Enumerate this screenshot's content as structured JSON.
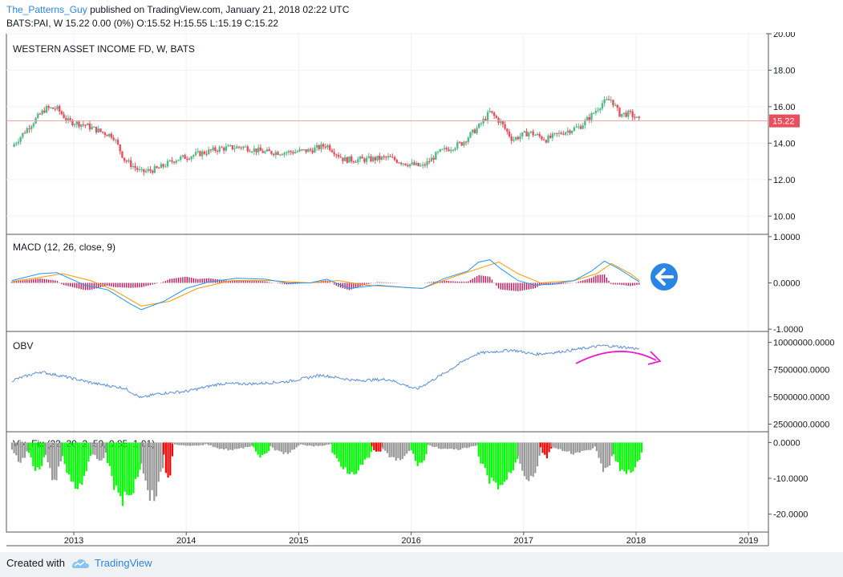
{
  "header": {
    "author": "The_Patterns_Guy",
    "published_text": "published on TradingView.com, January 21, 2018 02:22 UTC",
    "symbol_line": "BATS:PAI, W  15.22 0.00 (0%) O:15.52 H:15.55 L:15.19 C:15.22"
  },
  "footer": {
    "created_with": "Created with",
    "brand": "TradingView"
  },
  "colors": {
    "up": "#53b987",
    "down": "#eb4d5c",
    "price_line": "#e8a0a0",
    "macd": "#2196f3",
    "signal": "#ff9800",
    "hist": "#c2185b",
    "obv": "#5b8fd6",
    "vix_gray": "#999999",
    "vix_green": "#00ff00",
    "vix_red": "#ff0000",
    "annotation_arrow": "#e91ecf",
    "left_arrow": "#2b85e4"
  },
  "chart_data": {
    "type": "multi-panel",
    "x_ticks": [
      "2013",
      "2014",
      "2015",
      "2016",
      "2017",
      "2018",
      "2019"
    ],
    "panels": [
      {
        "name": "price",
        "type": "candlestick",
        "title": "WESTERN ASSET INCOME FD, W, BATS",
        "ylim": [
          9,
          20
        ],
        "y_ticks": [
          "10.00",
          "12.00",
          "14.00",
          "16.00",
          "18.00",
          "20.00"
        ],
        "last_value_label": "15.22",
        "last_value": 15.22,
        "close_series_approx": [
          {
            "t": 2012.45,
            "v": 13.8
          },
          {
            "t": 2012.6,
            "v": 14.9
          },
          {
            "t": 2012.75,
            "v": 15.9
          },
          {
            "t": 2012.85,
            "v": 15.9
          },
          {
            "t": 2012.95,
            "v": 15.2
          },
          {
            "t": 2013.1,
            "v": 15.0
          },
          {
            "t": 2013.25,
            "v": 14.6
          },
          {
            "t": 2013.35,
            "v": 14.4
          },
          {
            "t": 2013.45,
            "v": 13.1
          },
          {
            "t": 2013.6,
            "v": 12.4
          },
          {
            "t": 2013.75,
            "v": 12.6
          },
          {
            "t": 2013.9,
            "v": 13.1
          },
          {
            "t": 2014.1,
            "v": 13.4
          },
          {
            "t": 2014.3,
            "v": 13.7
          },
          {
            "t": 2014.5,
            "v": 13.8
          },
          {
            "t": 2014.7,
            "v": 13.5
          },
          {
            "t": 2014.9,
            "v": 13.5
          },
          {
            "t": 2015.1,
            "v": 13.6
          },
          {
            "t": 2015.25,
            "v": 13.9
          },
          {
            "t": 2015.4,
            "v": 13.1
          },
          {
            "t": 2015.6,
            "v": 13.1
          },
          {
            "t": 2015.8,
            "v": 13.2
          },
          {
            "t": 2015.95,
            "v": 12.9
          },
          {
            "t": 2016.1,
            "v": 12.7
          },
          {
            "t": 2016.25,
            "v": 13.5
          },
          {
            "t": 2016.45,
            "v": 14.0
          },
          {
            "t": 2016.6,
            "v": 14.9
          },
          {
            "t": 2016.7,
            "v": 15.7
          },
          {
            "t": 2016.8,
            "v": 15.1
          },
          {
            "t": 2016.9,
            "v": 14.2
          },
          {
            "t": 2017.05,
            "v": 14.6
          },
          {
            "t": 2017.2,
            "v": 14.2
          },
          {
            "t": 2017.35,
            "v": 14.6
          },
          {
            "t": 2017.5,
            "v": 14.9
          },
          {
            "t": 2017.6,
            "v": 15.5
          },
          {
            "t": 2017.7,
            "v": 16.2
          },
          {
            "t": 2017.78,
            "v": 16.4
          },
          {
            "t": 2017.85,
            "v": 15.6
          },
          {
            "t": 2017.95,
            "v": 15.6
          },
          {
            "t": 2018.03,
            "v": 15.22
          }
        ]
      },
      {
        "name": "macd",
        "type": "line+histogram",
        "title": "MACD (12, 26, close, 9)",
        "ylim": [
          -1.05,
          1.05
        ],
        "y_ticks": [
          "1.0000",
          "0.0000",
          "-1.0000"
        ],
        "macd_series_approx": [
          {
            "t": 2012.45,
            "v": 0.05
          },
          {
            "t": 2012.7,
            "v": 0.2
          },
          {
            "t": 2012.85,
            "v": 0.22
          },
          {
            "t": 2013.1,
            "v": -0.05
          },
          {
            "t": 2013.3,
            "v": -0.15
          },
          {
            "t": 2013.5,
            "v": -0.45
          },
          {
            "t": 2013.6,
            "v": -0.58
          },
          {
            "t": 2013.8,
            "v": -0.4
          },
          {
            "t": 2014.0,
            "v": -0.12
          },
          {
            "t": 2014.2,
            "v": 0.02
          },
          {
            "t": 2014.45,
            "v": 0.1
          },
          {
            "t": 2014.7,
            "v": 0.08
          },
          {
            "t": 2014.9,
            "v": 0.0
          },
          {
            "t": 2015.1,
            "v": 0.0
          },
          {
            "t": 2015.25,
            "v": 0.08
          },
          {
            "t": 2015.45,
            "v": -0.12
          },
          {
            "t": 2015.7,
            "v": -0.05
          },
          {
            "t": 2015.95,
            "v": -0.1
          },
          {
            "t": 2016.1,
            "v": -0.12
          },
          {
            "t": 2016.3,
            "v": 0.1
          },
          {
            "t": 2016.5,
            "v": 0.25
          },
          {
            "t": 2016.6,
            "v": 0.45
          },
          {
            "t": 2016.7,
            "v": 0.5
          },
          {
            "t": 2016.8,
            "v": 0.3
          },
          {
            "t": 2016.95,
            "v": 0.05
          },
          {
            "t": 2017.1,
            "v": -0.05
          },
          {
            "t": 2017.25,
            "v": -0.02
          },
          {
            "t": 2017.45,
            "v": 0.05
          },
          {
            "t": 2017.6,
            "v": 0.25
          },
          {
            "t": 2017.72,
            "v": 0.47
          },
          {
            "t": 2017.85,
            "v": 0.3
          },
          {
            "t": 2018.03,
            "v": 0.02
          }
        ],
        "signal_series_approx": [
          {
            "t": 2012.45,
            "v": 0.03
          },
          {
            "t": 2012.7,
            "v": 0.12
          },
          {
            "t": 2012.9,
            "v": 0.2
          },
          {
            "t": 2013.15,
            "v": 0.05
          },
          {
            "t": 2013.35,
            "v": -0.15
          },
          {
            "t": 2013.6,
            "v": -0.5
          },
          {
            "t": 2013.85,
            "v": -0.4
          },
          {
            "t": 2014.1,
            "v": -0.12
          },
          {
            "t": 2014.4,
            "v": 0.05
          },
          {
            "t": 2014.75,
            "v": 0.05
          },
          {
            "t": 2015.1,
            "v": 0.0
          },
          {
            "t": 2015.35,
            "v": 0.05
          },
          {
            "t": 2015.6,
            "v": -0.05
          },
          {
            "t": 2016.1,
            "v": -0.12
          },
          {
            "t": 2016.4,
            "v": 0.15
          },
          {
            "t": 2016.65,
            "v": 0.35
          },
          {
            "t": 2016.78,
            "v": 0.45
          },
          {
            "t": 2016.95,
            "v": 0.2
          },
          {
            "t": 2017.15,
            "v": 0.0
          },
          {
            "t": 2017.45,
            "v": 0.05
          },
          {
            "t": 2017.65,
            "v": 0.2
          },
          {
            "t": 2017.78,
            "v": 0.42
          },
          {
            "t": 2017.95,
            "v": 0.2
          },
          {
            "t": 2018.03,
            "v": 0.05
          }
        ],
        "annotation": "left-pointing arrow at right of panel"
      },
      {
        "name": "obv",
        "type": "line",
        "title": "OBV",
        "ylim": [
          1800000,
          11000000
        ],
        "y_ticks": [
          "10000000.0000",
          "7500000.0000",
          "5000000.0000",
          "2500000.0000"
        ],
        "obv_series_approx": [
          {
            "t": 2012.45,
            "v": 6500000
          },
          {
            "t": 2012.7,
            "v": 7300000
          },
          {
            "t": 2012.9,
            "v": 6900000
          },
          {
            "t": 2013.2,
            "v": 6200000
          },
          {
            "t": 2013.45,
            "v": 5800000
          },
          {
            "t": 2013.6,
            "v": 4900000
          },
          {
            "t": 2013.75,
            "v": 5300000
          },
          {
            "t": 2014.0,
            "v": 5500000
          },
          {
            "t": 2014.3,
            "v": 6200000
          },
          {
            "t": 2014.6,
            "v": 6200000
          },
          {
            "t": 2014.9,
            "v": 6400000
          },
          {
            "t": 2015.2,
            "v": 7000000
          },
          {
            "t": 2015.5,
            "v": 6500000
          },
          {
            "t": 2015.8,
            "v": 6600000
          },
          {
            "t": 2016.05,
            "v": 5700000
          },
          {
            "t": 2016.3,
            "v": 7200000
          },
          {
            "t": 2016.5,
            "v": 8500000
          },
          {
            "t": 2016.6,
            "v": 9000000
          },
          {
            "t": 2016.9,
            "v": 9300000
          },
          {
            "t": 2017.1,
            "v": 8900000
          },
          {
            "t": 2017.3,
            "v": 9100000
          },
          {
            "t": 2017.5,
            "v": 9400000
          },
          {
            "t": 2017.7,
            "v": 9700000
          },
          {
            "t": 2017.85,
            "v": 9600000
          },
          {
            "t": 2018.03,
            "v": 9400000
          }
        ],
        "annotation": "curved arrow showing flattening/rollover of OBV"
      },
      {
        "name": "vix_fix",
        "type": "bar",
        "title": "Vix_Fix (22, 20, 2, 50, 0.85, 1.01)",
        "ylim": [
          -25,
          3
        ],
        "y_ticks": [
          "0.0000",
          "-10.0000",
          "-20.0000"
        ],
        "segments_approx": [
          {
            "start": 2012.45,
            "end": 2012.6,
            "depth": -5,
            "color": "gray"
          },
          {
            "start": 2012.6,
            "end": 2012.75,
            "depth": -8,
            "color": "green"
          },
          {
            "start": 2012.75,
            "end": 2012.9,
            "depth": -10,
            "color": "gray"
          },
          {
            "start": 2012.9,
            "end": 2013.15,
            "depth": -12,
            "color": "green"
          },
          {
            "start": 2013.15,
            "end": 2013.3,
            "depth": -5,
            "color": "gray"
          },
          {
            "start": 2013.3,
            "end": 2013.6,
            "depth": -16,
            "color": "green"
          },
          {
            "start": 2013.6,
            "end": 2013.8,
            "depth": -15,
            "color": "gray"
          },
          {
            "start": 2013.8,
            "end": 2013.88,
            "depth": -10,
            "color": "red"
          },
          {
            "start": 2013.88,
            "end": 2014.2,
            "depth": -1,
            "color": "gray"
          },
          {
            "start": 2014.2,
            "end": 2014.6,
            "depth": -2,
            "color": "gray"
          },
          {
            "start": 2014.6,
            "end": 2014.75,
            "depth": -4,
            "color": "green"
          },
          {
            "start": 2014.75,
            "end": 2015.0,
            "depth": -3,
            "color": "gray"
          },
          {
            "start": 2015.0,
            "end": 2015.3,
            "depth": -1,
            "color": "gray"
          },
          {
            "start": 2015.3,
            "end": 2015.65,
            "depth": -8,
            "color": "green"
          },
          {
            "start": 2015.65,
            "end": 2015.75,
            "depth": -3,
            "color": "red"
          },
          {
            "start": 2015.75,
            "end": 2016.0,
            "depth": -5,
            "color": "gray"
          },
          {
            "start": 2016.0,
            "end": 2016.15,
            "depth": -6,
            "color": "green"
          },
          {
            "start": 2016.15,
            "end": 2016.6,
            "depth": -2,
            "color": "gray"
          },
          {
            "start": 2016.6,
            "end": 2016.95,
            "depth": -12,
            "color": "green"
          },
          {
            "start": 2016.95,
            "end": 2017.15,
            "depth": -10,
            "color": "gray"
          },
          {
            "start": 2017.15,
            "end": 2017.25,
            "depth": -4,
            "color": "red"
          },
          {
            "start": 2017.25,
            "end": 2017.65,
            "depth": -3,
            "color": "gray"
          },
          {
            "start": 2017.65,
            "end": 2017.8,
            "depth": -8,
            "color": "gray"
          },
          {
            "start": 2017.8,
            "end": 2018.05,
            "depth": -9,
            "color": "green"
          }
        ]
      }
    ]
  }
}
